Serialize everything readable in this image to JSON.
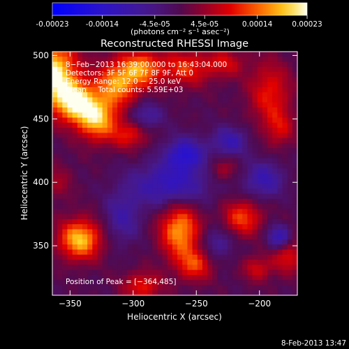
{
  "colorbar": {
    "tick_labels": [
      "-0.00023",
      "-0.00014",
      "-4.5e-05",
      "4.5e-05",
      "0.00014",
      "0.00023"
    ],
    "tick_values": [
      -0.00023,
      -0.00014,
      -4.5e-05,
      4.5e-05,
      0.00014,
      0.00023
    ],
    "range": [
      -0.00023,
      0.00023
    ],
    "unit_label": "(photons cm⁻² s⁻¹ asec⁻²)"
  },
  "chart_data": {
    "type": "heatmap",
    "title": "Reconstructed RHESSI Image",
    "xlabel": "Heliocentric X (arcsec)",
    "ylabel": "Heliocentric Y (arcsec)",
    "xlim": [
      -364,
      -170
    ],
    "ylim": [
      311,
      503
    ],
    "x_ticks": [
      -350,
      -300,
      -250,
      -200
    ],
    "x_tick_labels": [
      "−350",
      "−300",
      "−250",
      "−200"
    ],
    "y_ticks": [
      350,
      400,
      450,
      500
    ],
    "y_tick_labels": [
      "350",
      "400",
      "450",
      "500"
    ],
    "annotations": [
      "8−Feb−2013 16:39:00.000 to 16:43:04.000",
      "Detectors: 3F 5F 6F 7F 8F 9F, Att 0",
      "Energy Range: 12.0 − 25.0 keV",
      "Clean     Total counts: 5.59E+03"
    ],
    "peak_label": "Position of Peak = [−364,485]",
    "peak_position": [
      -364,
      485
    ],
    "sources": [
      {
        "x": -364,
        "y": 485,
        "amp": 0.00023,
        "sx": 14,
        "sy": 18
      },
      {
        "x": -345,
        "y": 463,
        "amp": 0.00019,
        "sx": 11,
        "sy": 11
      },
      {
        "x": -328,
        "y": 450,
        "amp": 0.00018,
        "sx": 11,
        "sy": 12
      },
      {
        "x": -312,
        "y": 478,
        "amp": 0.00016,
        "sx": 12,
        "sy": 13
      },
      {
        "x": -292,
        "y": 490,
        "amp": 0.00014,
        "sx": 11,
        "sy": 10
      },
      {
        "x": -302,
        "y": 438,
        "amp": 0.0001,
        "sx": 10,
        "sy": 8
      },
      {
        "x": -258,
        "y": 490,
        "amp": 0.00011,
        "sx": 14,
        "sy": 10
      },
      {
        "x": -226,
        "y": 494,
        "amp": 8e-05,
        "sx": 11,
        "sy": 8
      },
      {
        "x": -190,
        "y": 470,
        "amp": 0.0001,
        "sx": 12,
        "sy": 18
      },
      {
        "x": -182,
        "y": 442,
        "amp": 7e-05,
        "sx": 8,
        "sy": 10
      },
      {
        "x": -342,
        "y": 355,
        "amp": 0.00019,
        "sx": 12,
        "sy": 11
      },
      {
        "x": -262,
        "y": 362,
        "amp": 0.00017,
        "sx": 11,
        "sy": 15
      },
      {
        "x": -250,
        "y": 335,
        "amp": 0.00011,
        "sx": 10,
        "sy": 9
      },
      {
        "x": -292,
        "y": 318,
        "amp": 0.0001,
        "sx": 11,
        "sy": 8
      },
      {
        "x": -212,
        "y": 372,
        "amp": 0.00012,
        "sx": 11,
        "sy": 10
      },
      {
        "x": -176,
        "y": 344,
        "amp": 0.0001,
        "sx": 9,
        "sy": 11
      },
      {
        "x": -200,
        "y": 332,
        "amp": 8e-05,
        "sx": 8,
        "sy": 7
      },
      {
        "x": -228,
        "y": 410,
        "amp": 6e-05,
        "sx": 8,
        "sy": 7
      },
      {
        "x": -360,
        "y": 400,
        "amp": 5e-05,
        "sx": 8,
        "sy": 10
      },
      {
        "x": -270,
        "y": 398,
        "amp": -0.00012,
        "sx": 22,
        "sy": 12
      },
      {
        "x": -258,
        "y": 422,
        "amp": -0.00014,
        "sx": 11,
        "sy": 9
      },
      {
        "x": -222,
        "y": 432,
        "amp": -0.0001,
        "sx": 10,
        "sy": 8
      },
      {
        "x": -290,
        "y": 452,
        "amp": -8e-05,
        "sx": 10,
        "sy": 8
      },
      {
        "x": -195,
        "y": 402,
        "amp": -0.0001,
        "sx": 11,
        "sy": 10
      },
      {
        "x": -182,
        "y": 356,
        "amp": -0.00014,
        "sx": 7,
        "sy": 7
      },
      {
        "x": -308,
        "y": 372,
        "amp": -8e-05,
        "sx": 10,
        "sy": 14
      },
      {
        "x": -232,
        "y": 352,
        "amp": -7e-05,
        "sx": 9,
        "sy": 9
      }
    ]
  },
  "footer": {
    "timestamp": "8-Feb-2013 13:47"
  }
}
